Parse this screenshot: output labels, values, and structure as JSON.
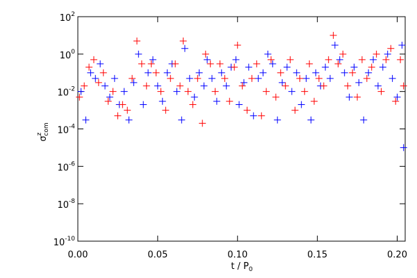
{
  "chart_data": {
    "type": "scatter",
    "y_label": {
      "symbol": "σ",
      "superscript": "z",
      "subscript": "com"
    },
    "x_label": {
      "text": "t / P",
      "subscript": "0"
    },
    "xlim": [
      0,
      0.205
    ],
    "ylim": [
      1e-10,
      100
    ],
    "log_y": true,
    "xticks": [
      {
        "value": 0,
        "label": "0.00"
      },
      0.05,
      {
        "value": 0.1,
        "label": "0.10"
      },
      0.15,
      {
        "value": 0.2,
        "label": "0.20"
      }
    ],
    "yticks": [
      {
        "value": 1e-10,
        "label": "10",
        "exponent": "-10"
      },
      {
        "value": 1e-08,
        "label": "10",
        "exponent": "-8"
      },
      {
        "value": 1e-06,
        "label": "10",
        "exponent": "-6"
      },
      {
        "value": 0.0001,
        "label": "10",
        "exponent": "-4"
      },
      {
        "value": 0.01,
        "label": "10",
        "exponent": "-2"
      },
      {
        "value": 1,
        "label": "10",
        "exponent": "0"
      },
      {
        "value": 100,
        "label": "10",
        "exponent": "2"
      }
    ],
    "marker": "plus",
    "series": [
      {
        "color": "#0000ff",
        "x": [
          0.002,
          0.005,
          0.008,
          0.011,
          0.014,
          0.017,
          0.02,
          0.023,
          0.026,
          0.029,
          0.032,
          0.035,
          0.038,
          0.041,
          0.044,
          0.047,
          0.05,
          0.053,
          0.056,
          0.059,
          0.062,
          0.065,
          0.067,
          0.07,
          0.073,
          0.076,
          0.079,
          0.081,
          0.084,
          0.087,
          0.09,
          0.093,
          0.096,
          0.099,
          0.101,
          0.104,
          0.107,
          0.11,
          0.113,
          0.116,
          0.119,
          0.122,
          0.125,
          0.128,
          0.131,
          0.134,
          0.137,
          0.14,
          0.143,
          0.146,
          0.149,
          0.152,
          0.155,
          0.158,
          0.161,
          0.164,
          0.167,
          0.17,
          0.173,
          0.176,
          0.179,
          0.182,
          0.185,
          0.188,
          0.191,
          0.194,
          0.197,
          0.2,
          0.203,
          0.204
        ],
        "values": [
          0.01,
          0.0003,
          0.1,
          0.05,
          0.3,
          0.02,
          0.005,
          0.05,
          0.002,
          0.01,
          0.0003,
          0.03,
          1,
          0.002,
          0.1,
          0.5,
          0.02,
          0.003,
          0.1,
          0.3,
          0.01,
          0.0003,
          2,
          0.05,
          0.005,
          0.1,
          0.02,
          0.5,
          0.05,
          0.003,
          0.1,
          0.02,
          0.2,
          0.5,
          0.002,
          0.03,
          0.2,
          0.0005,
          0.05,
          0.1,
          1,
          0.3,
          0.0003,
          0.03,
          0.2,
          0.01,
          0.1,
          0.002,
          0.05,
          0.0003,
          0.1,
          0.02,
          0.2,
          0.05,
          3,
          0.5,
          0.1,
          0.005,
          0.2,
          0.03,
          0.0003,
          0.1,
          0.5,
          0.02,
          0.2,
          1,
          0.05,
          0.005,
          3,
          1e-05
        ]
      },
      {
        "color": "#ff0000",
        "x": [
          0.001,
          0.004,
          0.007,
          0.01,
          0.013,
          0.016,
          0.019,
          0.022,
          0.025,
          0.028,
          0.031,
          0.034,
          0.037,
          0.04,
          0.043,
          0.046,
          0.049,
          0.052,
          0.055,
          0.058,
          0.061,
          0.064,
          0.066,
          0.069,
          0.072,
          0.075,
          0.078,
          0.08,
          0.083,
          0.086,
          0.089,
          0.092,
          0.095,
          0.098,
          0.1,
          0.103,
          0.106,
          0.109,
          0.112,
          0.115,
          0.118,
          0.121,
          0.124,
          0.127,
          0.13,
          0.133,
          0.136,
          0.139,
          0.142,
          0.145,
          0.148,
          0.151,
          0.154,
          0.157,
          0.16,
          0.163,
          0.166,
          0.169,
          0.172,
          0.175,
          0.178,
          0.181,
          0.184,
          0.187,
          0.19,
          0.193,
          0.196,
          0.199,
          0.202,
          0.204
        ],
        "values": [
          0.005,
          0.02,
          0.2,
          0.5,
          0.03,
          0.1,
          0.003,
          0.01,
          0.0005,
          0.002,
          0.001,
          0.05,
          5,
          0.3,
          0.02,
          0.3,
          0.1,
          0.01,
          0.001,
          0.05,
          0.3,
          0.02,
          5,
          0.01,
          0.002,
          0.05,
          0.0002,
          1,
          0.3,
          0.01,
          0.3,
          0.05,
          0.003,
          0.2,
          3,
          0.02,
          0.001,
          0.05,
          0.3,
          0.0005,
          0.01,
          0.5,
          0.005,
          0.1,
          0.02,
          0.5,
          0.001,
          0.05,
          0.01,
          0.3,
          0.003,
          0.05,
          0.02,
          0.5,
          10,
          0.3,
          1,
          0.02,
          0.1,
          0.005,
          0.5,
          0.05,
          0.2,
          1,
          0.01,
          0.5,
          2,
          0.003,
          0.5,
          0.02
        ]
      }
    ]
  }
}
